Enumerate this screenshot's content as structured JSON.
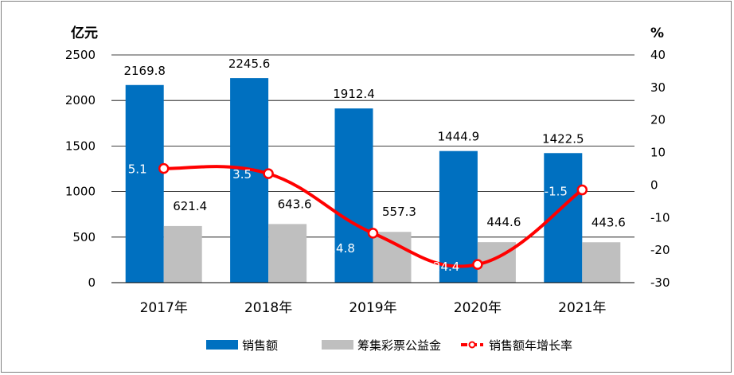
{
  "chart_data": {
    "type": "bar",
    "categories": [
      "2017年",
      "2018年",
      "2019年",
      "2020年",
      "2021年"
    ],
    "y_left_unit": "亿元",
    "y_right_unit": "%",
    "y_left_lim": [
      0,
      2500
    ],
    "y_left_ticks": [
      "0",
      "500",
      "1000",
      "1500",
      "2000",
      "2500"
    ],
    "y_right_lim": [
      -30,
      40
    ],
    "y_right_ticks": [
      "-30",
      "-20",
      "-10",
      "0",
      "10",
      "20",
      "30",
      "40"
    ],
    "grid": true,
    "legend_position": "bottom",
    "series": [
      {
        "name": "销售额",
        "kind": "bar",
        "axis": "left",
        "color": "#0070c0",
        "values": [
          2169.8,
          2245.6,
          1912.4,
          1444.9,
          1422.5
        ],
        "labels": [
          "2169.8",
          "2245.6",
          "1912.4",
          "1444.9",
          "1422.5"
        ]
      },
      {
        "name": "筹集彩票公益金",
        "kind": "bar",
        "axis": "left",
        "color": "#bfbfbf",
        "values": [
          621.4,
          643.6,
          557.3,
          444.6,
          443.6
        ],
        "labels": [
          "621.4",
          "643.6",
          "557.3",
          "444.6",
          "443.6"
        ]
      },
      {
        "name": "销售额年增长率",
        "kind": "line",
        "axis": "right",
        "color": "#ff0000",
        "values": [
          5.1,
          3.5,
          -14.8,
          -24.4,
          -1.5
        ],
        "labels": [
          "5.1",
          "3.5",
          "-14.8",
          "-24.4",
          "-1.5"
        ]
      }
    ]
  }
}
